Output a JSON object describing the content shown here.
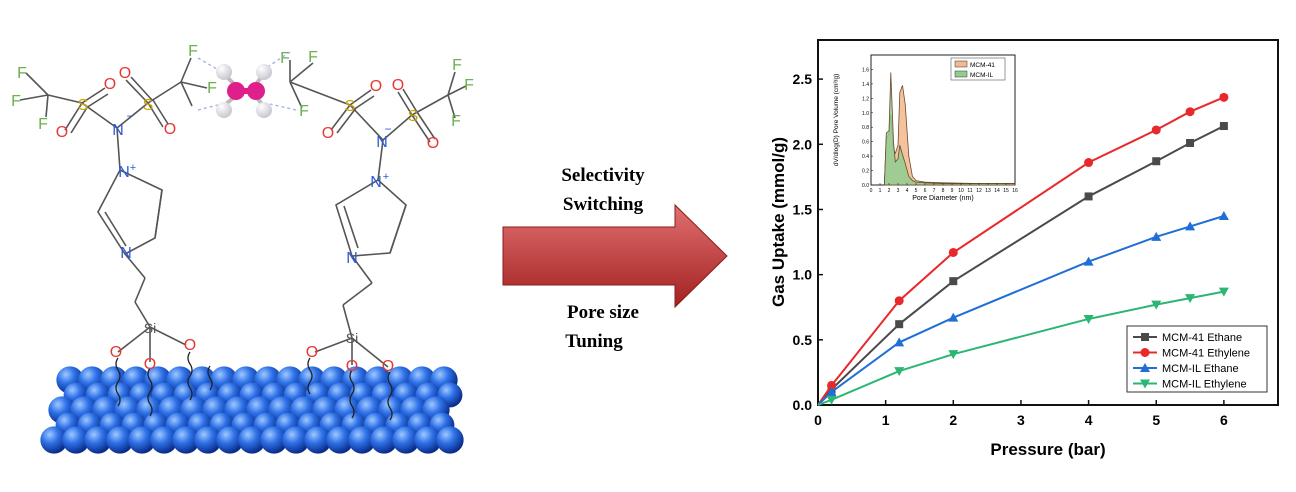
{
  "molecule": {
    "labels": {
      "F": "F",
      "O": "O",
      "S": "S",
      "N": "N",
      "N_minus": "−",
      "N_plus": "+",
      "Si": "Si"
    }
  },
  "arrow": {
    "top_line1": "Selectivity",
    "top_line2": "Switching",
    "bottom_line1": "Pore size",
    "bottom_line2": "Tuning",
    "color_light": "#e07070",
    "color_dark": "#a32020"
  },
  "chart_data": [
    {
      "type": "line",
      "title": "",
      "xlabel": "Pressure (bar)",
      "ylabel": "Gas Uptake (mmol/g)",
      "xlim": [
        0,
        7
      ],
      "ylim": [
        0,
        2.8
      ],
      "xticks": [
        "0",
        "1",
        "2",
        "3",
        "4",
        "5",
        "6"
      ],
      "yticks": [
        "0.0",
        "0.5",
        "1.0",
        "1.5",
        "2.0",
        "2.5"
      ],
      "legend_position": "bottom-right",
      "series": [
        {
          "name": "MCM-41 Ethane",
          "color": "#4a4a4a",
          "marker": "square",
          "x": [
            0,
            0.2,
            1.2,
            2,
            4,
            5,
            5.5,
            6
          ],
          "y": [
            0,
            0.12,
            0.62,
            0.95,
            1.6,
            1.87,
            2.01,
            2.14
          ]
        },
        {
          "name": "MCM-41 Ethylene",
          "color": "#e8282b",
          "marker": "circle",
          "x": [
            0,
            0.2,
            1.2,
            2,
            4,
            5,
            5.5,
            6
          ],
          "y": [
            0,
            0.15,
            0.8,
            1.17,
            1.86,
            2.11,
            2.25,
            2.36
          ]
        },
        {
          "name": "MCM-IL Ethane",
          "color": "#1f6fd6",
          "marker": "triangle-up",
          "x": [
            0,
            0.2,
            1.2,
            2,
            4,
            5,
            5.5,
            6
          ],
          "y": [
            0,
            0.1,
            0.48,
            0.67,
            1.1,
            1.29,
            1.37,
            1.45
          ]
        },
        {
          "name": "MCM-IL Ethylene",
          "color": "#2bb673",
          "marker": "triangle-down",
          "x": [
            0,
            0.2,
            1.2,
            2,
            4,
            5,
            5.5,
            6
          ],
          "y": [
            0,
            0.04,
            0.26,
            0.39,
            0.66,
            0.77,
            0.82,
            0.87
          ]
        }
      ]
    },
    {
      "type": "area",
      "title": "",
      "xlabel": "Pore Diameter (nm)",
      "ylabel": "dV/dlog(D) Pore Volume (cm³/g)",
      "xlim": [
        0,
        16
      ],
      "ylim": [
        0,
        1.8
      ],
      "xticks": [
        "0",
        "1",
        "2",
        "3",
        "4",
        "5",
        "6",
        "7",
        "8",
        "9",
        "10",
        "11",
        "12",
        "13",
        "14",
        "15",
        "16"
      ],
      "yticks": [
        "0.0",
        "0.2",
        "0.4",
        "0.6",
        "0.8",
        "1.0",
        "1.2",
        "1.4",
        "1.6"
      ],
      "legend_position": "top-right",
      "series": [
        {
          "name": "MCM-41",
          "color": "#f2b98d",
          "x": [
            1.5,
            1.7,
            2.0,
            2.2,
            2.5,
            2.7,
            3.0,
            3.2,
            3.5,
            3.8,
            4.2,
            4.6,
            5.0,
            6.0,
            8.0,
            12.0,
            16.0
          ],
          "y": [
            0.05,
            0.65,
            0.7,
            0.98,
            0.48,
            0.44,
            0.55,
            1.28,
            1.38,
            1.12,
            0.4,
            0.12,
            0.06,
            0.04,
            0.03,
            0.02,
            0.02
          ]
        },
        {
          "name": "MCM-IL",
          "color": "#8fce8f",
          "x": [
            1.5,
            1.7,
            2.0,
            2.2,
            2.5,
            2.7,
            3.0,
            3.2,
            3.5,
            3.8,
            4.2,
            4.6,
            5.0,
            6.0,
            8.0,
            12.0,
            16.0
          ],
          "y": [
            0.05,
            0.72,
            0.75,
            1.56,
            0.6,
            0.32,
            0.36,
            0.55,
            0.42,
            0.3,
            0.12,
            0.06,
            0.04,
            0.03,
            0.02,
            0.02,
            0.02
          ]
        }
      ]
    }
  ]
}
